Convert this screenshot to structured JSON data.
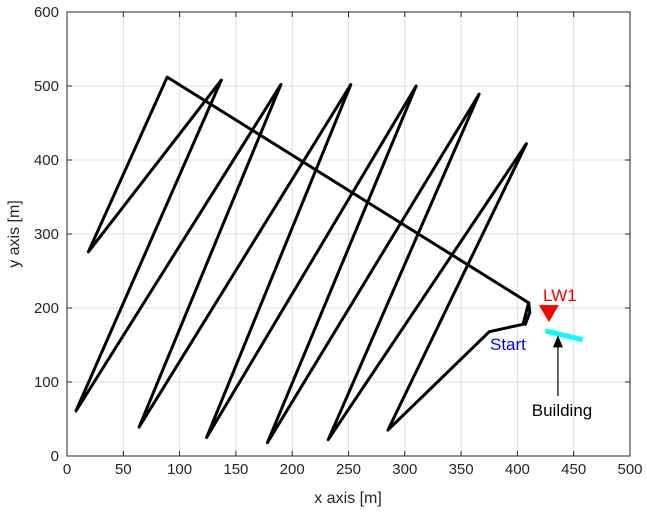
{
  "chart_data": {
    "type": "line",
    "xlabel": "x axis [m]",
    "ylabel": "y axis [m]",
    "xlim": [
      0,
      500
    ],
    "ylim": [
      0,
      600
    ],
    "xticks": [
      0,
      50,
      100,
      150,
      200,
      250,
      300,
      350,
      400,
      450,
      500
    ],
    "yticks": [
      0,
      100,
      200,
      300,
      400,
      500,
      600
    ],
    "grid": true,
    "series": [
      {
        "color": "#000000",
        "x": [
          407,
          411,
          410,
          405,
          375,
          285,
          408,
          232,
          366,
          178,
          310,
          124,
          252,
          64,
          190,
          8,
          137,
          19,
          89,
          410
        ],
        "y": [
          178,
          194,
          207,
          178,
          168,
          35,
          422,
          22,
          489,
          18,
          500,
          25,
          502,
          39,
          502,
          61,
          508,
          276,
          512,
          207
        ]
      }
    ],
    "annotations": {
      "lw1": {
        "label": "LW1",
        "x": 428,
        "y": 193,
        "color": "#ff0000"
      },
      "start": {
        "label": "Start",
        "color": "#0000ff"
      },
      "building": {
        "label": "Building",
        "x": [
          425,
          458
        ],
        "y": [
          169,
          157
        ],
        "color": "#00ffff",
        "arrow_tip_x": 436,
        "arrow_tip_y": 163
      }
    }
  }
}
